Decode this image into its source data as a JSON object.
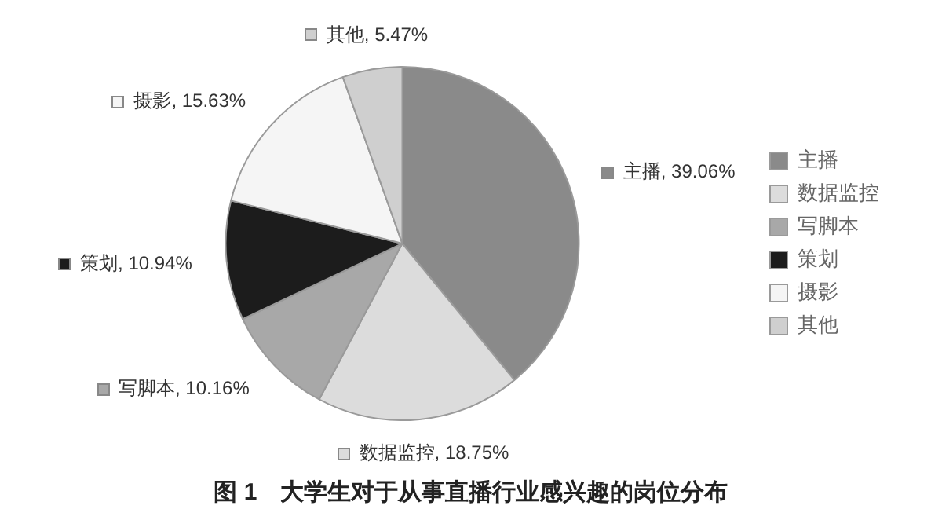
{
  "chart_data": {
    "type": "pie",
    "title": "图 1　大学生对于从事直播行业感兴趣的岗位分布",
    "categories": [
      "主播",
      "数据监控",
      "写脚本",
      "策划",
      "摄影",
      "其他"
    ],
    "values": [
      39.06,
      18.75,
      10.16,
      10.94,
      15.63,
      5.47
    ],
    "value_labels": [
      "主播, 39.06%",
      "数据监控, 18.75%",
      "写脚本, 10.16%",
      "策划, 10.94%",
      "摄影, 15.63%",
      "其他, 5.47%"
    ],
    "colors": [
      "#8a8a8a",
      "#dcdcdc",
      "#a8a8a8",
      "#1c1c1c",
      "#f5f5f5",
      "#cfcfcf"
    ],
    "legend": "right"
  }
}
